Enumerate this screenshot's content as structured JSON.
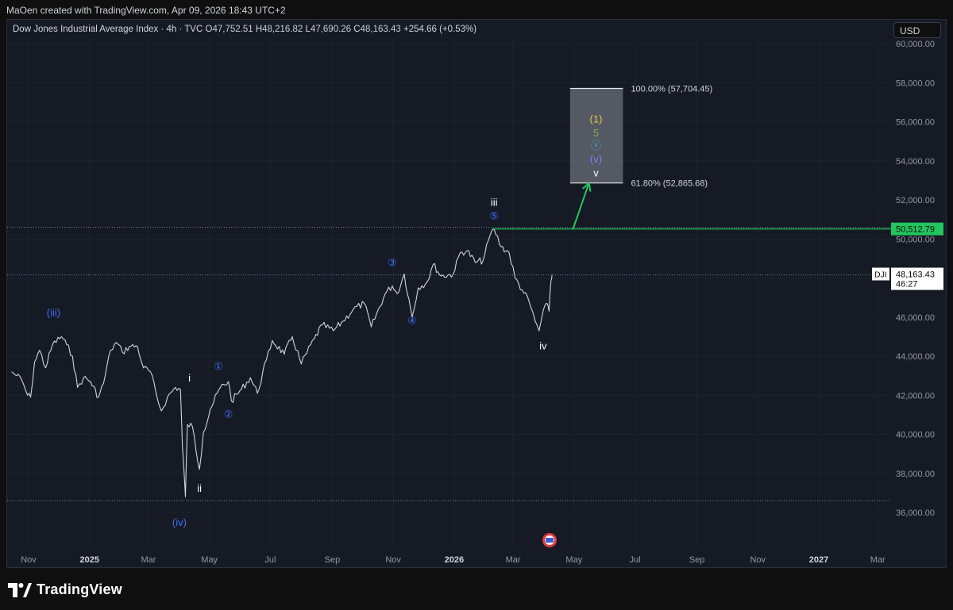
{
  "header": {
    "byline": "MaOen created with TradingView.com, Apr 09, 2026 18:43 UTC+2"
  },
  "legend": {
    "symbol": "Dow Jones Industrial Average Index · 4h · TVC",
    "o_label": "O",
    "o_value": "47,752.51",
    "h_label": "H",
    "h_value": "48,216.82",
    "l_label": "L",
    "l_value": "47,690.26",
    "c_label": "C",
    "c_value": "48,163.43",
    "change": "+254.66 (+0.53%)"
  },
  "currency_button": "USD",
  "footer": {
    "brand": "TradingView"
  },
  "colors": {
    "background": "#161a25",
    "price_line": "#d1d4dc",
    "target_green": "#22c55e",
    "wave_blue": "#3d6ef5",
    "wave_yellow": "#e6c84a",
    "wave_olive": "#8aa84a",
    "wave_cyan": "#3ab0c8",
    "wave_purple": "#7b7ff0"
  },
  "chart_data": {
    "type": "line",
    "symbol": "DJI",
    "interval": "4h",
    "ylim": [
      35000,
      60500
    ],
    "y_ticks": [
      36000,
      38000,
      40000,
      42000,
      44000,
      46000,
      48000,
      50000,
      52000,
      54000,
      56000,
      58000,
      60000
    ],
    "y_tick_labels": [
      "36,000.00",
      "38,000.00",
      "40,000.00",
      "42,000.00",
      "44,000.00",
      "46,000.00",
      "48,000.00",
      "50,000.00",
      "52,000.00",
      "54,000.00",
      "56,000.00",
      "58,000.00",
      "60,000.00"
    ],
    "x_axis_start": "2024-10-15",
    "x_axis_end": "2027-03-20",
    "x_ticks": [
      {
        "date": "2024-11-01",
        "label": "Nov"
      },
      {
        "date": "2025-01-01",
        "label": "2025"
      },
      {
        "date": "2025-03-01",
        "label": "Mar"
      },
      {
        "date": "2025-05-01",
        "label": "May"
      },
      {
        "date": "2025-07-01",
        "label": "Jul"
      },
      {
        "date": "2025-09-01",
        "label": "Sep"
      },
      {
        "date": "2025-11-01",
        "label": "Nov"
      },
      {
        "date": "2026-01-01",
        "label": "2026"
      },
      {
        "date": "2026-03-01",
        "label": "Mar"
      },
      {
        "date": "2026-05-01",
        "label": "May"
      },
      {
        "date": "2026-07-01",
        "label": "Jul"
      },
      {
        "date": "2026-09-01",
        "label": "Sep"
      },
      {
        "date": "2026-11-01",
        "label": "Nov"
      },
      {
        "date": "2027-01-01",
        "label": "2027"
      },
      {
        "date": "2027-03-01",
        "label": "Mar"
      }
    ],
    "series": [
      {
        "values": [
          [
            "2024-10-15",
            43200
          ],
          [
            "2024-10-20",
            43000
          ],
          [
            "2024-10-25",
            42800
          ],
          [
            "2024-10-31",
            42000
          ],
          [
            "2024-11-03",
            41900
          ],
          [
            "2024-11-07",
            43700
          ],
          [
            "2024-11-12",
            44300
          ],
          [
            "2024-11-18",
            43400
          ],
          [
            "2024-11-25",
            44600
          ],
          [
            "2024-12-04",
            45000
          ],
          [
            "2024-12-09",
            44600
          ],
          [
            "2024-12-15",
            44000
          ],
          [
            "2024-12-20",
            42400
          ],
          [
            "2024-12-26",
            42900
          ],
          [
            "2025-01-02",
            42700
          ],
          [
            "2025-01-10",
            41900
          ],
          [
            "2025-01-15",
            42600
          ],
          [
            "2025-01-22",
            44300
          ],
          [
            "2025-01-28",
            44700
          ],
          [
            "2025-02-03",
            44200
          ],
          [
            "2025-02-10",
            44500
          ],
          [
            "2025-02-18",
            44500
          ],
          [
            "2025-02-24",
            43400
          ],
          [
            "2025-03-03",
            43200
          ],
          [
            "2025-03-10",
            41800
          ],
          [
            "2025-03-14",
            41200
          ],
          [
            "2025-03-20",
            41900
          ],
          [
            "2025-03-28",
            42400
          ],
          [
            "2025-04-02",
            42300
          ],
          [
            "2025-04-04",
            39400
          ],
          [
            "2025-04-07",
            36800
          ],
          [
            "2025-04-09",
            40500
          ],
          [
            "2025-04-14",
            40400
          ],
          [
            "2025-04-21",
            38200
          ],
          [
            "2025-04-25",
            40100
          ],
          [
            "2025-05-02",
            41300
          ],
          [
            "2025-05-12",
            42400
          ],
          [
            "2025-05-20",
            42700
          ],
          [
            "2025-05-23",
            41700
          ],
          [
            "2025-06-02",
            42300
          ],
          [
            "2025-06-11",
            42900
          ],
          [
            "2025-06-18",
            42100
          ],
          [
            "2025-06-27",
            43800
          ],
          [
            "2025-07-03",
            44800
          ],
          [
            "2025-07-15",
            44100
          ],
          [
            "2025-07-23",
            45000
          ],
          [
            "2025-08-01",
            43600
          ],
          [
            "2025-08-14",
            44900
          ],
          [
            "2025-08-22",
            45600
          ],
          [
            "2025-09-02",
            45300
          ],
          [
            "2025-09-12",
            45800
          ],
          [
            "2025-09-22",
            46400
          ],
          [
            "2025-10-03",
            46700
          ],
          [
            "2025-10-10",
            45500
          ],
          [
            "2025-10-24",
            47200
          ],
          [
            "2025-10-31",
            47600
          ],
          [
            "2025-11-05",
            47200
          ],
          [
            "2025-11-12",
            48200
          ],
          [
            "2025-11-20",
            46000
          ],
          [
            "2025-11-26",
            47500
          ],
          [
            "2025-12-05",
            47800
          ],
          [
            "2025-12-11",
            48700
          ],
          [
            "2025-12-19",
            48100
          ],
          [
            "2025-12-31",
            48200
          ],
          [
            "2026-01-07",
            49300
          ],
          [
            "2026-01-14",
            49400
          ],
          [
            "2026-01-22",
            48800
          ],
          [
            "2026-01-30",
            48900
          ],
          [
            "2026-02-06",
            50200
          ],
          [
            "2026-02-10",
            50500
          ],
          [
            "2026-02-17",
            49600
          ],
          [
            "2026-02-25",
            49300
          ],
          [
            "2026-03-03",
            48000
          ],
          [
            "2026-03-10",
            47400
          ],
          [
            "2026-03-17",
            46800
          ],
          [
            "2026-03-23",
            45800
          ],
          [
            "2026-03-27",
            45300
          ],
          [
            "2026-03-31",
            46300
          ],
          [
            "2026-04-03",
            46700
          ],
          [
            "2026-04-06",
            46300
          ],
          [
            "2026-04-08",
            47900
          ],
          [
            "2026-04-09",
            48163
          ]
        ]
      }
    ],
    "last_price_label": {
      "symbol": "DJI",
      "price": "48,163.43",
      "countdown": "46:27"
    },
    "horizontal_levels": [
      {
        "price": 50512.79,
        "label": "50,512.79",
        "style": "solid",
        "color": "#22c55e",
        "from_date": "2026-02-08"
      },
      {
        "price": 50600,
        "style": "dotted"
      },
      {
        "price": 48163.43,
        "style": "dotted"
      },
      {
        "price": 36600,
        "style": "dotted"
      }
    ],
    "target_box": {
      "from_date": "2026-04-27",
      "to_date": "2026-06-19",
      "top": 57704.45,
      "bottom": 52865.68,
      "top_label": "100.00% (57,704.45)",
      "bottom_label": "61.80% (52,865.68)"
    },
    "arrow": {
      "from": [
        "2026-04-30",
        50512.79
      ],
      "to": [
        "2026-05-16",
        52865.68
      ]
    },
    "wave_labels": [
      {
        "text": "(iii)",
        "date": "2024-11-26",
        "price": 46050,
        "color": "#3d6ef5"
      },
      {
        "text": "(iv)",
        "date": "2025-04-01",
        "price": 35300,
        "color": "#3d6ef5"
      },
      {
        "text": "i",
        "date": "2025-04-11",
        "price": 42700,
        "color": "#ffffff"
      },
      {
        "text": "ii",
        "date": "2025-04-21",
        "price": 37050,
        "color": "#ffffff"
      },
      {
        "text": "①",
        "date": "2025-05-10",
        "price": 43300,
        "color": "#3d6ef5"
      },
      {
        "text": "②",
        "date": "2025-05-20",
        "price": 40850,
        "color": "#3d6ef5"
      },
      {
        "text": "③",
        "date": "2025-10-31",
        "price": 48600,
        "color": "#3d6ef5"
      },
      {
        "text": "④",
        "date": "2025-11-20",
        "price": 45650,
        "color": "#3d6ef5"
      },
      {
        "text": "iii",
        "date": "2026-02-10",
        "price": 51700,
        "color": "#ffffff"
      },
      {
        "text": "⑤",
        "date": "2026-02-10",
        "price": 51000,
        "color": "#3d6ef5"
      },
      {
        "text": "iv",
        "date": "2026-03-31",
        "price": 44350,
        "color": "#ffffff"
      },
      {
        "text": "(1)",
        "date": "2026-05-23",
        "price": 55950,
        "color": "#e6c84a"
      },
      {
        "text": "5",
        "date": "2026-05-23",
        "price": 55250,
        "color": "#8aa84a"
      },
      {
        "text": "ⓥ",
        "date": "2026-05-23",
        "price": 54600,
        "color": "#3ab0c8"
      },
      {
        "text": "(v)",
        "date": "2026-05-23",
        "price": 53900,
        "color": "#7b7ff0"
      },
      {
        "text": "v",
        "date": "2026-05-23",
        "price": 53200,
        "color": "#ffffff"
      }
    ]
  }
}
